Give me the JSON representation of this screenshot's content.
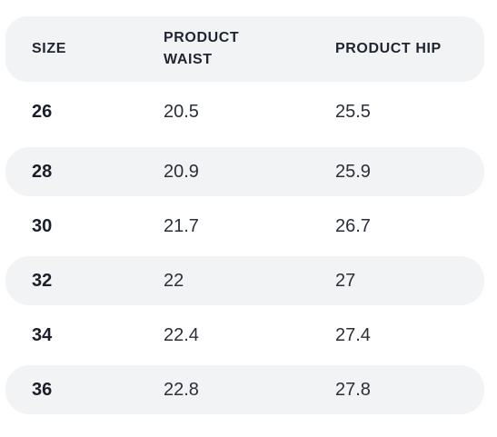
{
  "table": {
    "headers": {
      "size": "SIZE",
      "waist": "PRODUCT\nWAIST",
      "hip": "PRODUCT HIP"
    },
    "rows": [
      {
        "size": "26",
        "waist": "20.5",
        "hip": "25.5",
        "shaded": false
      },
      {
        "size": "28",
        "waist": "20.9",
        "hip": "25.9",
        "shaded": true
      },
      {
        "size": "30",
        "waist": "21.7",
        "hip": "26.7",
        "shaded": false
      },
      {
        "size": "32",
        "waist": "22",
        "hip": "27",
        "shaded": true
      },
      {
        "size": "34",
        "waist": "22.4",
        "hip": "27.4",
        "shaded": false
      },
      {
        "size": "36",
        "waist": "22.8",
        "hip": "27.8",
        "shaded": true
      }
    ]
  },
  "colors": {
    "row_shade": "#f2f3f5",
    "text": "#1f2430"
  }
}
